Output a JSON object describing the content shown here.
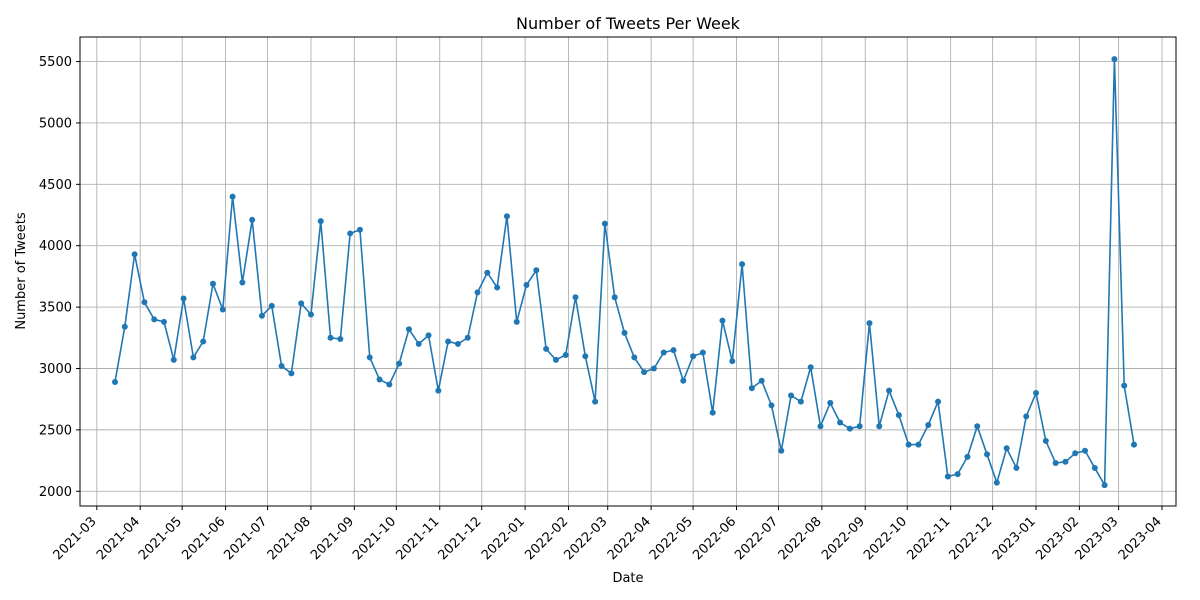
{
  "chart_data": {
    "type": "line",
    "title": "Number of Tweets Per Week",
    "xlabel": "Date",
    "ylabel": "Number of Tweets",
    "grid": true,
    "ylim": [
      1880,
      5700
    ],
    "xlim": [
      "2021-02-17",
      "2023-04-11"
    ],
    "yticks": [
      2000,
      2500,
      3000,
      3500,
      4000,
      4500,
      5000,
      5500
    ],
    "xticks": [
      "2021-03",
      "2021-04",
      "2021-05",
      "2021-06",
      "2021-07",
      "2021-08",
      "2021-09",
      "2021-10",
      "2021-11",
      "2021-12",
      "2022-01",
      "2022-02",
      "2022-03",
      "2022-04",
      "2022-05",
      "2022-06",
      "2022-07",
      "2022-08",
      "2022-09",
      "2022-10",
      "2022-11",
      "2022-12",
      "2023-01",
      "2023-02",
      "2023-03",
      "2023-04"
    ],
    "line_color": "#1f77b4",
    "series": [
      {
        "start_date": "2021-03-14",
        "interval_days": 7,
        "values": [
          2890,
          3340,
          3930,
          3540,
          3400,
          3380,
          3070,
          3570,
          3090,
          3220,
          3690,
          3480,
          4400,
          3700,
          4210,
          3430,
          3510,
          3020,
          2960,
          3530,
          3440,
          4200,
          3250,
          3240,
          4100,
          4130,
          3090,
          2910,
          2870,
          3040,
          3320,
          3200,
          3270,
          2820,
          3220,
          3200,
          3250,
          3620,
          3780,
          3660,
          4240,
          3380,
          3680,
          3800,
          3160,
          3070,
          3110,
          3580,
          3100,
          2730,
          4180,
          3580,
          3290,
          3090,
          2970,
          3000,
          3130,
          3150,
          2900,
          3100,
          3130,
          2640,
          3390,
          3060,
          3850,
          2840,
          2900,
          2700,
          2330,
          2780,
          2730,
          3010,
          2530,
          2720,
          2560,
          2510,
          2530,
          3370,
          2530,
          2820,
          2620,
          2380,
          2380,
          2540,
          2730,
          2120,
          2140,
          2280,
          2530,
          2300,
          2070,
          2350,
          2190,
          2610,
          2800,
          2410,
          2230,
          2240,
          2310,
          2330,
          2190,
          2050,
          5520,
          2860,
          2380
        ]
      }
    ]
  }
}
